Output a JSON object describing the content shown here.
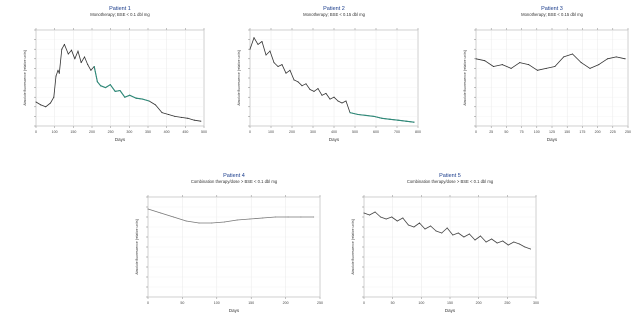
{
  "chart_data": [
    {
      "type": "line",
      "title": "Patient 1",
      "subtitle": "Monotherapy; BSE < 0.1 dbl mg",
      "xlabel": "Days",
      "ylabel": "Absolute fluorescence [relative units]",
      "x_ticks": [
        "0",
        "100",
        "150",
        "200",
        "250",
        "300",
        "350",
        "400",
        "450",
        "500"
      ],
      "grid": true,
      "series": [
        {
          "color": "#333333",
          "x": [
            0,
            15,
            30,
            45,
            55,
            62,
            68,
            72,
            80,
            88,
            100,
            110,
            120,
            130,
            140,
            150,
            160,
            170,
            180,
            190,
            200,
            215,
            230,
            245,
            260,
            275,
            290,
            310,
            330,
            350,
            370,
            390,
            410,
            430,
            450,
            470,
            490,
            510
          ],
          "y": [
            25,
            22,
            20,
            24,
            30,
            52,
            58,
            55,
            80,
            85,
            75,
            79,
            70,
            78,
            66,
            72,
            64,
            58,
            62,
            46,
            42,
            40,
            43,
            36,
            37,
            30,
            32,
            29,
            28,
            26,
            22,
            14,
            12,
            10,
            9,
            8,
            6,
            5
          ]
        },
        {
          "color": "#2e8b7a",
          "x": [
            180,
            190,
            200,
            215,
            230,
            245,
            260,
            275,
            290,
            310,
            330,
            350
          ],
          "y": [
            62,
            46,
            42,
            40,
            43,
            36,
            37,
            30,
            32,
            29,
            28,
            26
          ]
        }
      ],
      "ylim": [
        0,
        100
      ],
      "xlim": [
        0,
        520
      ]
    },
    {
      "type": "line",
      "title": "Patient 2",
      "subtitle": "Monotherapy; BSE < 0.15 dbl mg",
      "xlabel": "Days",
      "ylabel": "Absolute fluorescence [relative units]",
      "x_ticks": [
        "0",
        "100",
        "200",
        "300",
        "400",
        "500",
        "600",
        "700",
        "800"
      ],
      "grid": true,
      "series": [
        {
          "color": "#333333",
          "x": [
            0,
            20,
            40,
            60,
            80,
            100,
            120,
            140,
            160,
            180,
            200,
            220,
            240,
            260,
            280,
            300,
            320,
            340,
            360,
            380,
            400,
            420,
            440,
            460,
            480,
            500,
            540,
            580,
            620,
            660,
            700,
            740,
            780,
            820
          ],
          "y": [
            80,
            92,
            85,
            88,
            74,
            78,
            66,
            62,
            64,
            55,
            58,
            48,
            46,
            42,
            44,
            38,
            36,
            39,
            32,
            34,
            28,
            30,
            26,
            24,
            26,
            14,
            12,
            11,
            10,
            8,
            7,
            6,
            5,
            4
          ]
        },
        {
          "color": "#2e8b7a",
          "x": [
            500,
            540,
            580,
            620,
            660,
            700,
            740,
            780,
            820
          ],
          "y": [
            14,
            12,
            11,
            10,
            8,
            7,
            6,
            5,
            4
          ]
        }
      ],
      "ylim": [
        0,
        100
      ],
      "xlim": [
        0,
        840
      ]
    },
    {
      "type": "line",
      "title": "Patient 3",
      "subtitle": "Monotherapy; BSE < 0.15 dbl mg",
      "xlabel": "Days",
      "ylabel": "Absolute fluorescence [relative units]",
      "x_ticks": [
        "0",
        "25",
        "50",
        "75",
        "100",
        "125",
        "150",
        "175",
        "200",
        "225",
        "250"
      ],
      "grid": true,
      "series": [
        {
          "color": "#333333",
          "x": [
            0,
            15,
            30,
            45,
            60,
            75,
            90,
            105,
            120,
            135,
            150,
            165,
            180,
            195,
            210,
            225,
            240,
            255
          ],
          "y": [
            70,
            68,
            62,
            64,
            60,
            66,
            64,
            58,
            60,
            62,
            72,
            75,
            66,
            60,
            64,
            70,
            72,
            70
          ]
        }
      ],
      "ylim": [
        0,
        100
      ],
      "xlim": [
        0,
        260
      ]
    },
    {
      "type": "line",
      "title": "Patient 4",
      "subtitle": "Combination therapy/dose > BSE < 0.1 dbl mg",
      "xlabel": "Days",
      "ylabel": "Absolute fluorescence [relative units]",
      "x_ticks": [
        "0",
        "50",
        "100",
        "150",
        "200",
        "250"
      ],
      "grid": true,
      "series": [
        {
          "color": "#777777",
          "x": [
            0,
            20,
            40,
            60,
            80,
            100,
            120,
            140,
            160,
            180,
            200,
            220,
            240,
            260
          ],
          "y": [
            88,
            84,
            80,
            76,
            74,
            74,
            75,
            77,
            78,
            79,
            80,
            80,
            80,
            80
          ]
        }
      ],
      "ylim": [
        0,
        100
      ],
      "xlim": [
        0,
        270
      ]
    },
    {
      "type": "line",
      "title": "Patient 5",
      "subtitle": "Combination therapy/dose > BSE < 0.1 dbl mg",
      "xlabel": "Days",
      "ylabel": "Absolute fluorescence [relative units]",
      "x_ticks": [
        "0",
        "50",
        "100",
        "150",
        "200",
        "250",
        "300"
      ],
      "grid": true,
      "series": [
        {
          "color": "#444444",
          "x": [
            0,
            10,
            20,
            30,
            40,
            50,
            60,
            70,
            80,
            90,
            100,
            110,
            120,
            130,
            140,
            150,
            160,
            170,
            180,
            190,
            200,
            210,
            220,
            230,
            240,
            250,
            260,
            270,
            280,
            290,
            300
          ],
          "y": [
            84,
            82,
            85,
            80,
            78,
            80,
            76,
            79,
            72,
            70,
            74,
            68,
            71,
            66,
            64,
            69,
            62,
            64,
            60,
            63,
            57,
            61,
            55,
            58,
            54,
            56,
            52,
            55,
            53,
            50,
            48
          ]
        }
      ],
      "ylim": [
        0,
        100
      ],
      "xlim": [
        0,
        310
      ]
    }
  ]
}
